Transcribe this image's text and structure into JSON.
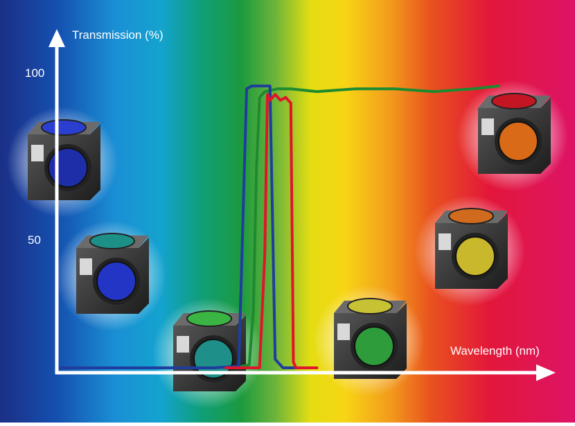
{
  "chart_data": {
    "type": "line",
    "title": "",
    "ylabel": "Transmission (%)",
    "xlabel": "Wavelength (nm)",
    "y_ticks": [
      "100",
      "50"
    ],
    "y_tick_values": [
      100,
      50
    ],
    "ylim": [
      0,
      100
    ],
    "grid": false,
    "legend": "none",
    "background": "visible-spectrum gradient (violet to red)",
    "series": [
      {
        "color": "#1f3d9c",
        "points": [
          [
            0,
            0
          ],
          [
            60,
            0
          ],
          [
            70,
            0.5
          ],
          [
            73,
            98
          ],
          [
            75,
            99
          ],
          [
            80,
            99
          ],
          [
            82,
            99
          ],
          [
            84,
            3
          ],
          [
            87,
            0
          ],
          [
            100,
            0
          ]
        ]
      },
      {
        "color": "#1e8a2f",
        "points": [
          [
            68,
            0
          ],
          [
            74,
            1
          ],
          [
            75.6,
            20
          ],
          [
            76.8,
            70
          ],
          [
            78,
            95
          ],
          [
            80,
            97
          ],
          [
            85,
            98
          ],
          [
            90,
            98
          ],
          [
            100,
            97
          ],
          [
            115,
            98
          ],
          [
            130,
            98
          ],
          [
            145,
            97
          ],
          [
            160,
            98
          ],
          [
            170,
            99
          ]
        ]
      },
      {
        "color": "#e0152b",
        "points": [
          [
            65,
            0
          ],
          [
            78,
            0
          ],
          [
            80,
            40
          ],
          [
            81,
            96
          ],
          [
            82,
            94
          ],
          [
            84,
            96
          ],
          [
            86,
            94
          ],
          [
            88,
            95
          ],
          [
            90,
            93
          ],
          [
            91,
            2
          ],
          [
            92,
            0
          ],
          [
            100,
            0
          ]
        ]
      }
    ],
    "cube_colors": [
      [
        "#2a3fd0",
        "#1e2ea8"
      ],
      [
        "#1c8f86",
        "#2235c4"
      ],
      [
        "#3ab543",
        "#1f8f8a"
      ],
      [
        "#c7c233",
        "#2e9c3a"
      ],
      [
        "#d06a1c",
        "#c9b82c"
      ],
      [
        "#c21622",
        "#d96a17"
      ]
    ]
  }
}
